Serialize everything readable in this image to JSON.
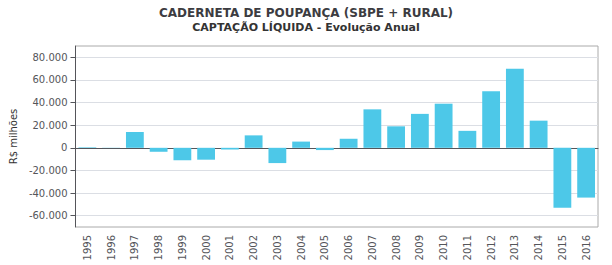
{
  "chart_data": {
    "type": "bar",
    "title": "CADERNETA DE POUPANÇA (SBPE + RURAL)",
    "subtitle": "CAPTAÇÃO LÍQUIDA - Evolução Anual",
    "ylabel": "R$ milhões",
    "categories": [
      "1995",
      "1996",
      "1997",
      "1998",
      "1999",
      "2000",
      "2001",
      "2002",
      "2003",
      "2004",
      "2005",
      "2006",
      "2007",
      "2008",
      "2009",
      "2010",
      "2011",
      "2012",
      "2013",
      "2014",
      "2015",
      "2016"
    ],
    "values": [
      500,
      -200,
      14000,
      -3500,
      -11000,
      -10500,
      -1500,
      11000,
      -13500,
      5500,
      -2000,
      8000,
      34000,
      19000,
      30000,
      39000,
      15000,
      50000,
      70000,
      24000,
      -53000,
      -44000
    ],
    "color": "#4DC8E8",
    "ylim": [
      -70000,
      90000
    ],
    "yticks": [
      {
        "value": -60000,
        "label": "-60.000"
      },
      {
        "value": -40000,
        "label": "-40.000"
      },
      {
        "value": -20000,
        "label": "-20.000"
      },
      0,
      {
        "value": 20000,
        "label": "20.000"
      },
      {
        "value": 40000,
        "label": "40.000"
      },
      {
        "value": 60000,
        "label": "60.000"
      },
      {
        "value": 80000,
        "label": "80.000"
      }
    ],
    "grid": true
  }
}
